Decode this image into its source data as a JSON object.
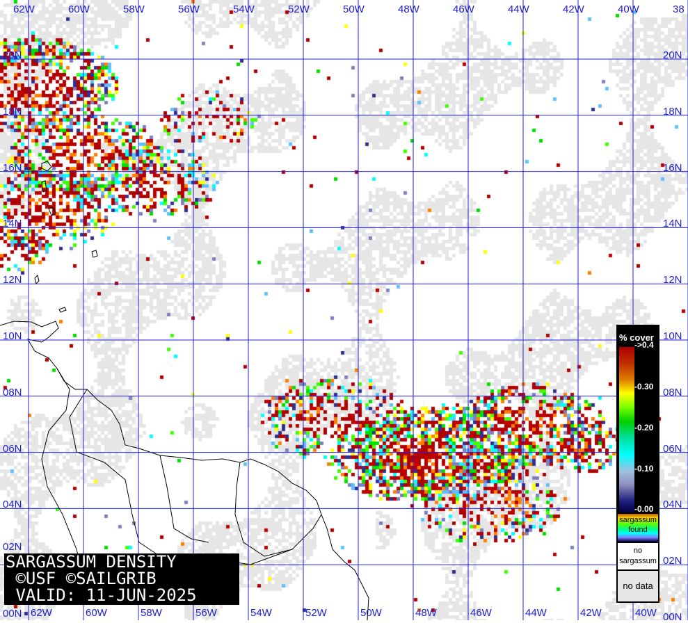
{
  "map": {
    "lon_labels": [
      "62W",
      "60W",
      "58W",
      "56W",
      "54W",
      "52W",
      "50W",
      "48W",
      "46W",
      "44W",
      "42W",
      "40W",
      "38"
    ],
    "lon_labels_bottom": [
      "62W",
      "60W",
      "58W",
      "56W",
      "54W",
      "52W",
      "50W",
      "48W",
      "46W",
      "44W",
      "42W",
      "40W"
    ],
    "lat_labels": [
      "20N",
      "18N",
      "16N",
      "14N",
      "12N",
      "10N",
      "08N",
      "06N",
      "04N",
      "02N",
      "00N"
    ],
    "grid_color": "#2020e0",
    "land_outline_color": "#000000",
    "no_data_color": "#e6e6e6",
    "high_density_color": "#b00000"
  },
  "title": {
    "line1": "SARGASSUM DENSITY",
    "line2": " ©USF ©SAILGRIB",
    "line3": " VALID: 11-JUN-2025"
  },
  "legend": {
    "header": "% cover",
    "ticks": [
      "->0.4",
      "-0.30",
      "-0.20",
      "-0.10",
      "-0.00"
    ],
    "found_line1": "sargassum",
    "found_line2": "found",
    "no_sarg_line1": "no",
    "no_sarg_line2": "sargassum",
    "no_data": "no data"
  }
}
